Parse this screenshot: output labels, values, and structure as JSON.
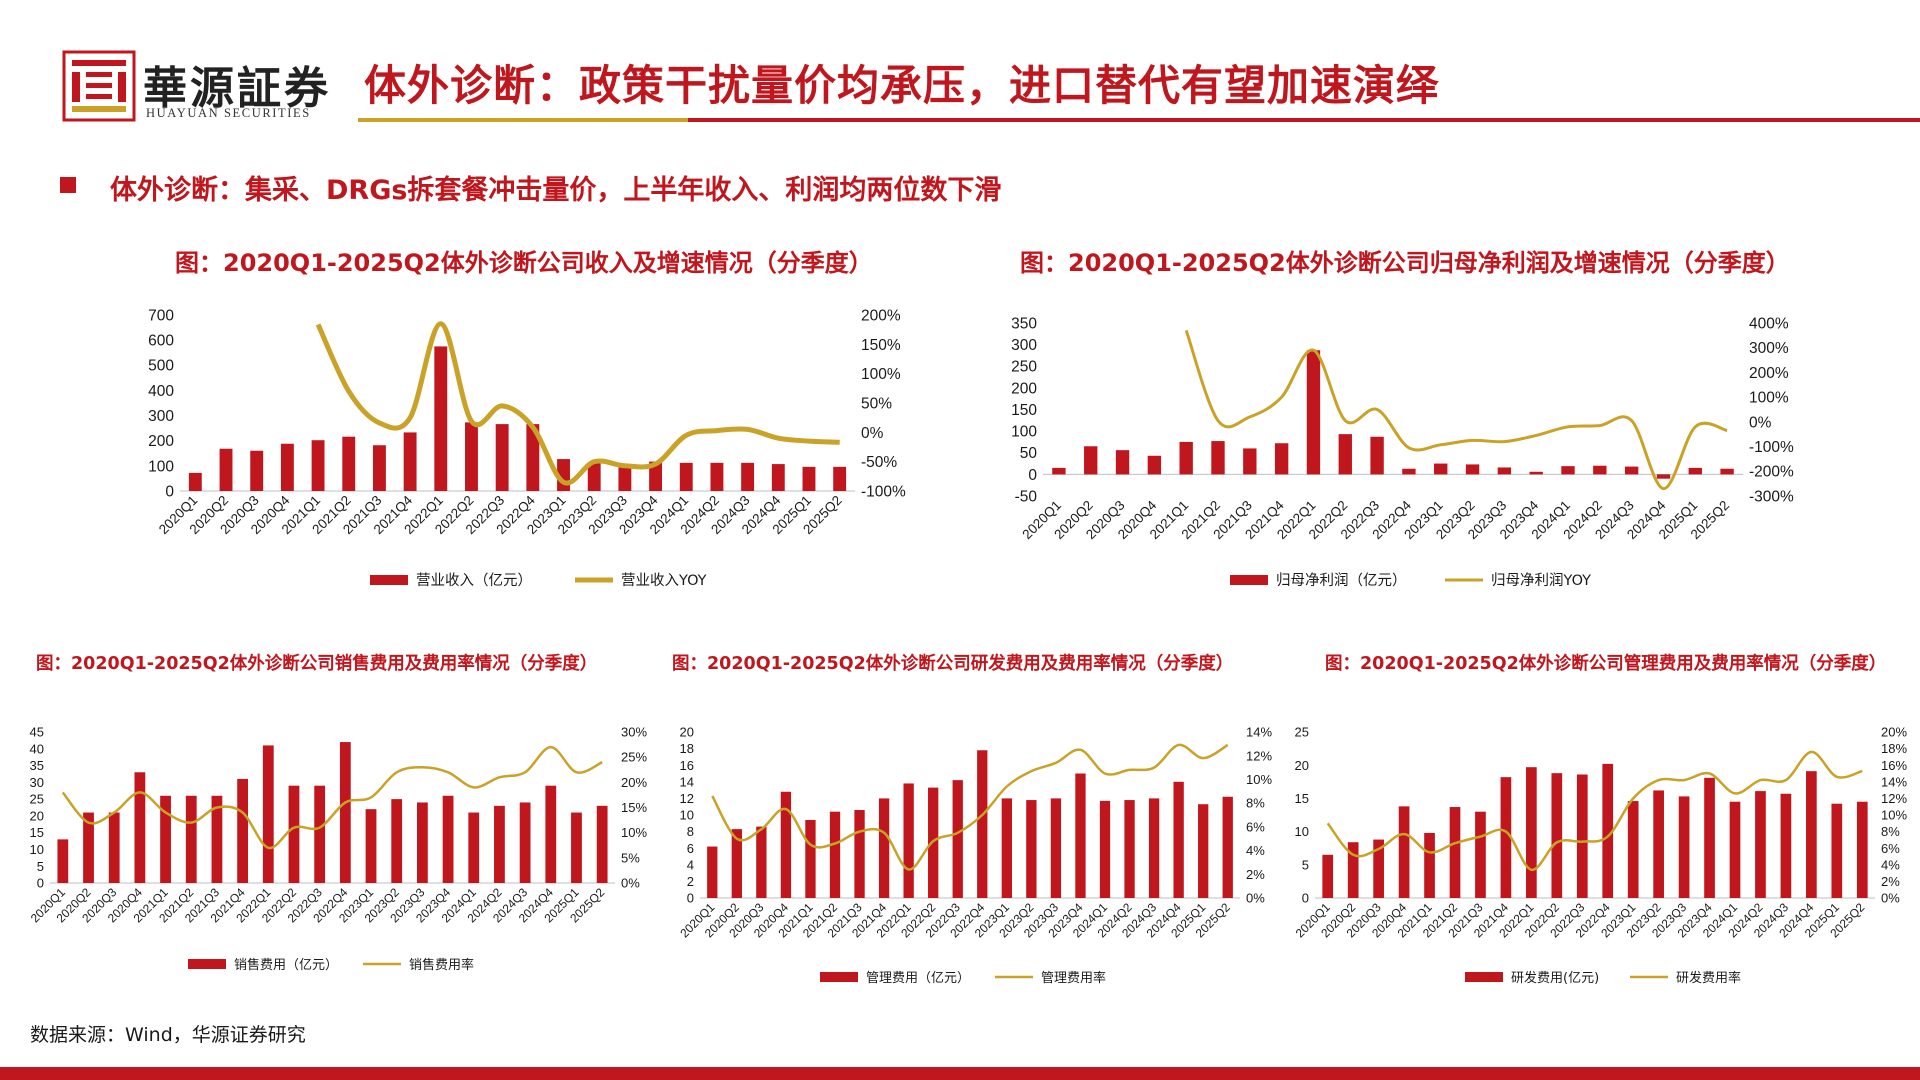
{
  "header": {
    "logo_cn": "華源証券",
    "logo_en": "HUAYUAN SECURITIES",
    "title": "体外诊断：政策干扰量价均承压，进口替代有望加速演绎"
  },
  "subtitle": "体外诊断：集采、DRGs拆套餐冲击量价，上半年收入、利润均两位数下滑",
  "source": "数据来源：Wind，华源证券研究",
  "colors": {
    "bar": "#c0161d",
    "line": "#c9a227",
    "accent": "#c0161d"
  },
  "chart_data": [
    {
      "type": "bar+line",
      "title": "图：2020Q1-2025Q2体外诊断公司收入及增速情况（分季度）",
      "categories": [
        "2020Q1",
        "2020Q2",
        "2020Q3",
        "2020Q4",
        "2021Q1",
        "2021Q2",
        "2021Q3",
        "2021Q4",
        "2022Q1",
        "2022Q2",
        "2022Q3",
        "2022Q4",
        "2023Q1",
        "2023Q2",
        "2023Q3",
        "2023Q4",
        "2024Q1",
        "2024Q2",
        "2024Q3",
        "2024Q4",
        "2025Q1",
        "2025Q2"
      ],
      "left_axis": {
        "min": 0,
        "max": 700,
        "ticks": [
          "0",
          "100",
          "200",
          "300",
          "400",
          "500",
          "600",
          "700"
        ]
      },
      "right_axis": {
        "min": -100,
        "max": 200,
        "ticks": [
          "-100%",
          "-50%",
          "0%",
          "50%",
          "100%",
          "150%",
          "200%"
        ]
      },
      "series": [
        {
          "name": "营业收入（亿元）",
          "kind": "bar",
          "axis": "left",
          "values": [
            72,
            168,
            160,
            188,
            202,
            216,
            182,
            233,
            575,
            273,
            266,
            266,
            127,
            112,
            105,
            117,
            112,
            112,
            112,
            107,
            96,
            96
          ]
        },
        {
          "name": "营业收入YOY",
          "kind": "line",
          "axis": "right",
          "values": [
            null,
            null,
            null,
            null,
            184,
            70,
            16,
            25,
            185,
            19,
            45,
            9,
            -85,
            -50,
            -57,
            -54,
            -5,
            3,
            5,
            -10,
            -15,
            -17
          ]
        }
      ]
    },
    {
      "type": "bar+line",
      "title": "图：2020Q1-2025Q2体外诊断公司归母净利润及增速情况（分季度）",
      "categories": [
        "2020Q1",
        "2020Q2",
        "2020Q3",
        "2020Q4",
        "2021Q1",
        "2021Q2",
        "2021Q3",
        "2021Q4",
        "2022Q1",
        "2022Q2",
        "2022Q3",
        "2022Q4",
        "2023Q1",
        "2023Q2",
        "2023Q3",
        "2023Q4",
        "2024Q1",
        "2024Q2",
        "2024Q3",
        "2024Q4",
        "2025Q1",
        "2025Q2"
      ],
      "left_axis": {
        "min": -50,
        "max": 350,
        "ticks": [
          "-50",
          "0",
          "50",
          "100",
          "150",
          "200",
          "250",
          "300",
          "350"
        ]
      },
      "right_axis": {
        "min": -300,
        "max": 400,
        "ticks": [
          "-300%",
          "-200%",
          "-100%",
          "0%",
          "100%",
          "200%",
          "300%",
          "400%"
        ]
      },
      "series": [
        {
          "name": "归母净利润（亿元）",
          "kind": "bar",
          "axis": "left",
          "values": [
            15,
            65,
            56,
            43,
            75,
            77,
            60,
            72,
            287,
            93,
            87,
            13,
            25,
            23,
            16,
            6,
            19,
            20,
            18,
            -10,
            15,
            13
          ]
        },
        {
          "name": "归母净利润YOY",
          "kind": "line",
          "axis": "right",
          "values": [
            null,
            null,
            null,
            null,
            370,
            5,
            20,
            100,
            290,
            5,
            50,
            -105,
            -93,
            -75,
            -80,
            -55,
            -20,
            -15,
            5,
            -270,
            -20,
            -35
          ]
        }
      ]
    },
    {
      "type": "bar+line",
      "title": "图：2020Q1-2025Q2体外诊断公司销售费用及费用率情况（分季度）",
      "categories": [
        "2020Q1",
        "2020Q2",
        "2020Q3",
        "2020Q4",
        "2021Q1",
        "2021Q2",
        "2021Q3",
        "2021Q4",
        "2022Q1",
        "2022Q2",
        "2022Q3",
        "2022Q4",
        "2023Q1",
        "2023Q2",
        "2023Q3",
        "2023Q4",
        "2024Q1",
        "2024Q2",
        "2024Q3",
        "2024Q4",
        "2025Q1",
        "2025Q2"
      ],
      "left_axis": {
        "min": 0,
        "max": 45,
        "ticks": [
          "0",
          "5",
          "10",
          "15",
          "20",
          "25",
          "30",
          "35",
          "40",
          "45"
        ]
      },
      "right_axis": {
        "min": 0,
        "max": 30,
        "ticks": [
          "0%",
          "5%",
          "10%",
          "15%",
          "20%",
          "25%",
          "30%"
        ]
      },
      "series": [
        {
          "name": "销售费用（亿元）",
          "kind": "bar",
          "axis": "left",
          "values": [
            13,
            21,
            21,
            33,
            26,
            26,
            26,
            31,
            41,
            29,
            29,
            42,
            22,
            25,
            24,
            26,
            21,
            23,
            24,
            29,
            21,
            23
          ]
        },
        {
          "name": "销售费用率",
          "kind": "line",
          "axis": "right",
          "values": [
            18,
            12,
            14,
            18,
            14,
            12,
            15,
            14,
            7,
            11,
            11,
            16,
            17,
            22,
            23,
            22,
            19,
            21,
            22,
            27,
            22,
            24
          ]
        }
      ]
    },
    {
      "type": "bar+line",
      "title": "图：2020Q1-2025Q2体外诊断公司研发费用及费用率情况（分季度）",
      "categories": [
        "2020Q1",
        "2020Q2",
        "2020Q3",
        "2020Q4",
        "2021Q1",
        "2021Q2",
        "2021Q3",
        "2021Q4",
        "2022Q1",
        "2022Q2",
        "2022Q3",
        "2022Q4",
        "2023Q1",
        "2023Q2",
        "2023Q3",
        "2023Q4",
        "2024Q1",
        "2024Q2",
        "2024Q3",
        "2024Q4",
        "2025Q1",
        "2025Q2"
      ],
      "left_axis": {
        "min": 0,
        "max": 20,
        "ticks": [
          "0",
          "2",
          "4",
          "6",
          "8",
          "10",
          "12",
          "14",
          "16",
          "18",
          "20"
        ]
      },
      "right_axis": {
        "min": 0,
        "max": 14,
        "ticks": [
          "0%",
          "2%",
          "4%",
          "6%",
          "8%",
          "10%",
          "12%",
          "14%"
        ]
      },
      "series": [
        {
          "name": "管理费用（亿元）",
          "kind": "bar",
          "axis": "left",
          "values": [
            6.2,
            8.3,
            8.6,
            12.8,
            9.4,
            10.4,
            10.6,
            12,
            13.8,
            13.3,
            14.2,
            17.8,
            12,
            11.8,
            12,
            15,
            11.7,
            11.8,
            12,
            14,
            11.3,
            12.2
          ]
        },
        {
          "name": "管理费用率",
          "kind": "line",
          "axis": "right",
          "values": [
            8.6,
            5,
            5.8,
            7.5,
            4.5,
            4.6,
            5.6,
            5.5,
            2.4,
            4.8,
            5.5,
            7,
            9.4,
            10.7,
            11.4,
            12.5,
            10.5,
            10.8,
            11,
            12.9,
            11.8,
            12.9
          ]
        }
      ]
    },
    {
      "type": "bar+line",
      "title": "图：2020Q1-2025Q2体外诊断公司管理费用及费用率情况（分季度）",
      "categories": [
        "2020Q1",
        "2020Q2",
        "2020Q3",
        "2020Q4",
        "2021Q1",
        "2021Q2",
        "2021Q3",
        "2021Q4",
        "2022Q1",
        "2022Q2",
        "2022Q3",
        "2022Q4",
        "2023Q1",
        "2023Q2",
        "2023Q3",
        "2023Q4",
        "2024Q1",
        "2024Q2",
        "2024Q3",
        "2024Q4",
        "2025Q1",
        "2025Q2"
      ],
      "left_axis": {
        "min": 0,
        "max": 25,
        "ticks": [
          "0",
          "5",
          "10",
          "15",
          "20",
          "25"
        ]
      },
      "right_axis": {
        "min": 0,
        "max": 20,
        "ticks": [
          "0%",
          "2%",
          "4%",
          "6%",
          "8%",
          "10%",
          "12%",
          "14%",
          "16%",
          "18%",
          "20%"
        ]
      },
      "series": [
        {
          "name": "研发费用(亿元)",
          "kind": "bar",
          "axis": "left",
          "values": [
            6.5,
            8.4,
            8.8,
            13.8,
            9.8,
            13.7,
            13,
            18.2,
            19.7,
            18.8,
            18.6,
            20.2,
            14.6,
            16.2,
            15.3,
            18.1,
            14.5,
            16.1,
            15.7,
            19.1,
            14.2,
            14.5
          ]
        },
        {
          "name": "研发费用率",
          "kind": "line",
          "axis": "right",
          "values": [
            9,
            5.2,
            5.9,
            7.7,
            5.5,
            6.6,
            7.4,
            8,
            3.4,
            6.7,
            6.8,
            7.4,
            12,
            14.2,
            14.2,
            15,
            12.6,
            14.2,
            14.2,
            17.6,
            14.6,
            15.3
          ]
        }
      ]
    }
  ]
}
